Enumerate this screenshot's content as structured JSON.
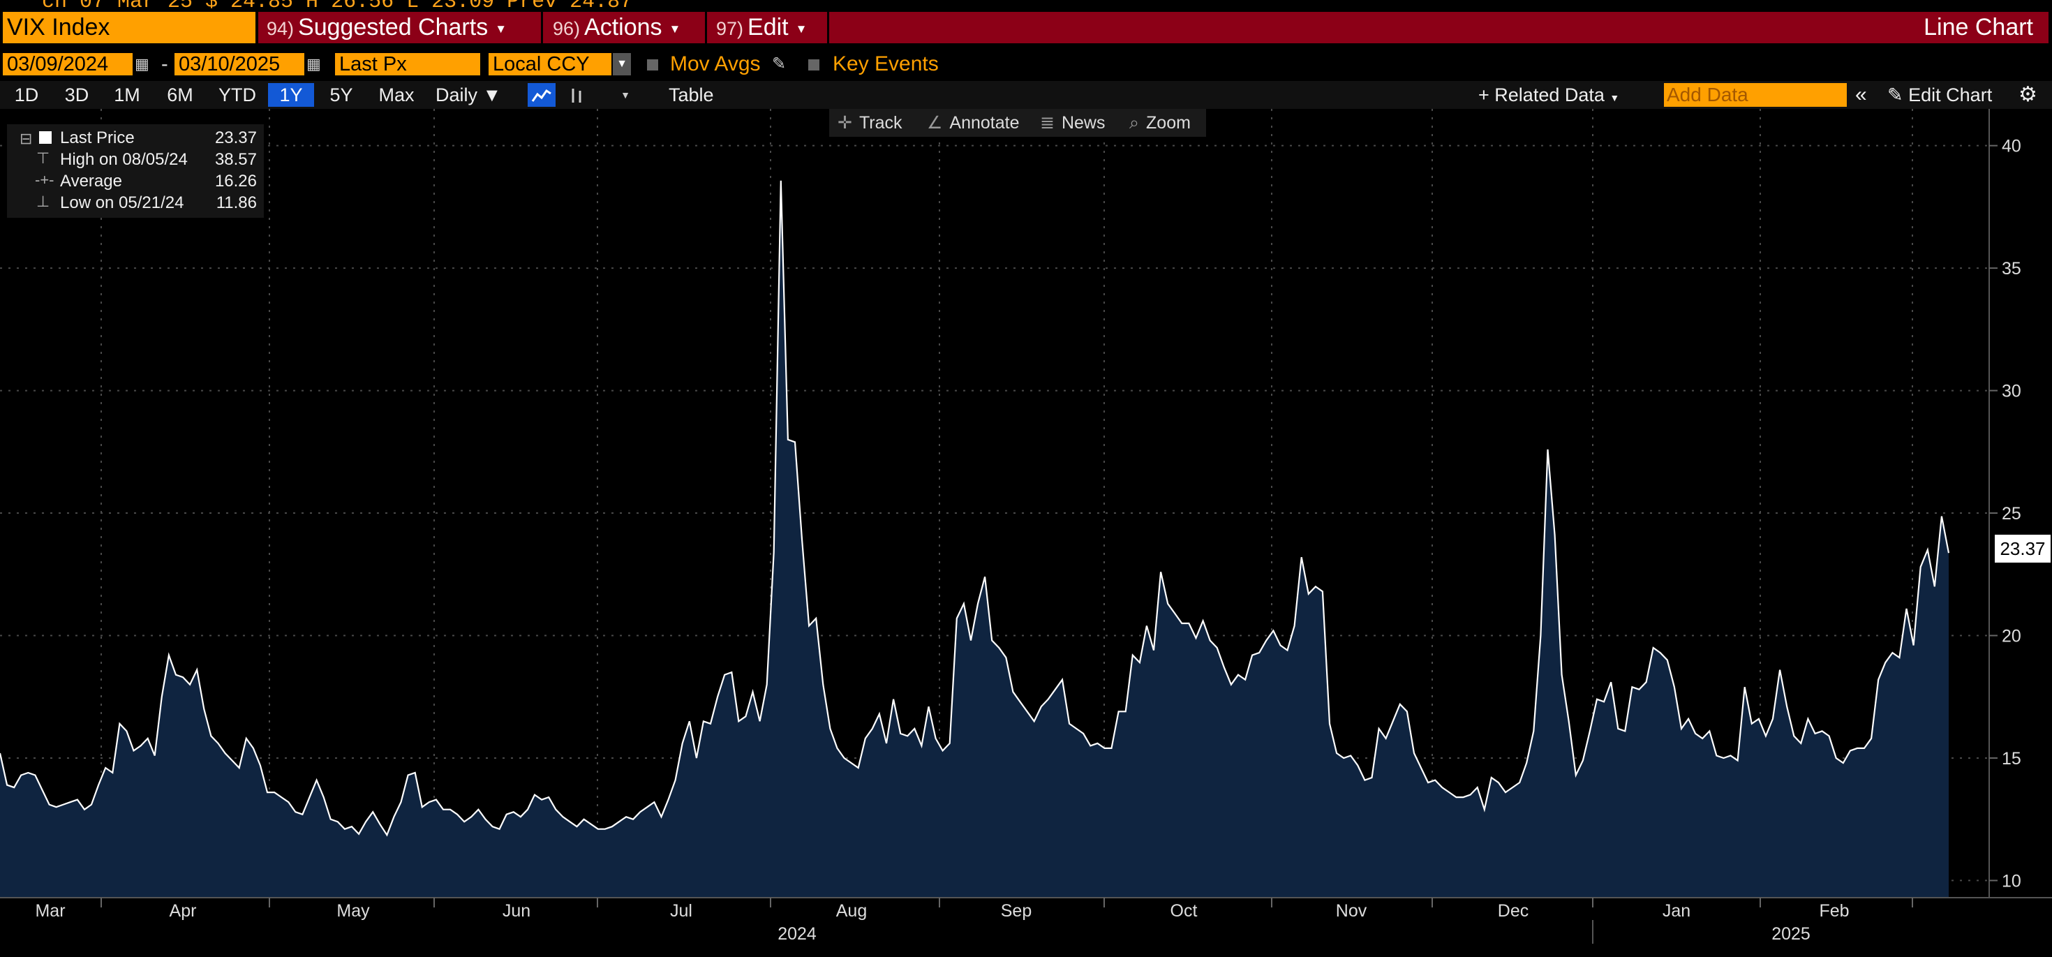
{
  "top_strip": {
    "text": "ch 07 Mar 25    $ 24.85  H 26.56  L 23.09  Prev 24.87"
  },
  "header": {
    "ticker": "VIX Index",
    "menus": [
      {
        "num": "94)",
        "label": "Suggested Charts"
      },
      {
        "num": "96)",
        "label": "Actions"
      },
      {
        "num": "97)",
        "label": "Edit"
      }
    ],
    "chart_type_label": "Line Chart"
  },
  "options": {
    "start_date": "03/09/2024",
    "end_date": "03/10/2025",
    "field": "Last Px",
    "currency": "Local CCY",
    "mov_avgs_label": "Mov Avgs",
    "key_events_label": "Key Events"
  },
  "controls": {
    "ranges": [
      "1D",
      "3D",
      "1M",
      "6M",
      "YTD",
      "1Y",
      "5Y",
      "Max"
    ],
    "selected_range": "1Y",
    "frequency": "Daily",
    "table_label": "Table",
    "related_data_label": "Related Data",
    "add_data_placeholder": "Add Data",
    "edit_chart_label": "Edit Chart"
  },
  "tools": {
    "track": "Track",
    "annotate": "Annotate",
    "news": "News",
    "zoom": "Zoom"
  },
  "legend": {
    "last_price_label": "Last Price",
    "last_price_value": "23.37",
    "high_label": "High on 08/05/24",
    "high_value": "38.57",
    "average_label": "Average",
    "average_value": "16.26",
    "low_label": "Low on 05/21/24",
    "low_value": "11.86"
  },
  "last_price_tag": "23.37",
  "colors": {
    "accent_orange": "#ffa000",
    "header_red": "#8c0017",
    "selected_blue": "#1359d6",
    "area_fill": "#0f2440",
    "line": "#ffffff"
  },
  "chart_data": {
    "type": "area",
    "title": "",
    "xlabel": "",
    "ylabel": "",
    "ylim": [
      9.3,
      41.5
    ],
    "yticks": [
      10,
      15,
      20,
      25,
      30,
      35,
      40
    ],
    "ytick_labels": [
      "10",
      "15",
      "20",
      "25",
      "30",
      "35",
      "40"
    ],
    "x_month_labels": [
      "Mar",
      "Apr",
      "May",
      "Jun",
      "Jul",
      "Aug",
      "Sep",
      "Oct",
      "Nov",
      "Dec",
      "Jan",
      "Feb"
    ],
    "x_year_labels": [
      "2024",
      "2025"
    ],
    "grid": true,
    "series": [
      {
        "values": [
          15.2,
          13.9,
          13.8,
          14.3,
          14.4,
          14.3,
          13.7,
          13.1,
          13.0,
          13.1,
          13.2,
          13.3,
          12.9,
          13.1,
          13.9,
          14.6,
          14.4,
          16.4,
          16.1,
          15.3,
          15.5,
          15.8,
          15.1,
          17.5,
          19.2,
          18.4,
          18.3,
          18.0,
          18.6,
          17.0,
          15.9,
          15.6,
          15.2,
          14.9,
          14.6,
          15.8,
          15.4,
          14.7,
          13.6,
          13.6,
          13.4,
          13.2,
          12.8,
          12.7,
          13.4,
          14.1,
          13.4,
          12.5,
          12.4,
          12.1,
          12.2,
          11.9,
          12.4,
          12.8,
          12.3,
          11.86,
          12.6,
          13.2,
          14.3,
          14.4,
          13.0,
          13.2,
          13.3,
          12.9,
          12.9,
          12.7,
          12.4,
          12.6,
          12.9,
          12.5,
          12.2,
          12.1,
          12.7,
          12.8,
          12.6,
          12.9,
          13.5,
          13.3,
          13.4,
          12.9,
          12.6,
          12.4,
          12.2,
          12.5,
          12.3,
          12.1,
          12.1,
          12.2,
          12.4,
          12.6,
          12.5,
          12.8,
          13.0,
          13.2,
          12.6,
          13.3,
          14.1,
          15.6,
          16.5,
          15.0,
          16.5,
          16.4,
          17.5,
          18.4,
          18.5,
          16.5,
          16.7,
          17.7,
          16.5,
          18.0,
          23.4,
          38.57,
          28.0,
          27.9,
          23.9,
          20.4,
          20.7,
          18.0,
          16.2,
          15.4,
          15.0,
          14.8,
          14.6,
          15.8,
          16.2,
          16.8,
          15.6,
          17.4,
          16.0,
          15.9,
          16.2,
          15.5,
          17.1,
          15.8,
          15.3,
          15.6,
          20.7,
          21.3,
          19.8,
          21.3,
          22.4,
          19.8,
          19.5,
          19.1,
          17.7,
          17.3,
          16.9,
          16.5,
          17.1,
          17.4,
          17.8,
          18.2,
          16.4,
          16.2,
          16.0,
          15.5,
          15.6,
          15.4,
          15.4,
          16.9,
          16.9,
          19.2,
          18.9,
          20.4,
          19.4,
          22.6,
          21.3,
          20.9,
          20.5,
          20.5,
          19.9,
          20.6,
          19.8,
          19.5,
          18.7,
          18.0,
          18.4,
          18.2,
          19.2,
          19.3,
          19.8,
          20.2,
          19.6,
          19.4,
          20.4,
          23.2,
          21.7,
          22.0,
          21.8,
          16.4,
          15.2,
          15.0,
          15.1,
          14.7,
          14.1,
          14.2,
          16.2,
          15.8,
          16.5,
          17.2,
          16.9,
          15.2,
          14.6,
          14.0,
          14.1,
          13.8,
          13.6,
          13.4,
          13.4,
          13.5,
          13.8,
          12.9,
          14.2,
          14.0,
          13.6,
          13.8,
          14.0,
          14.8,
          16.1,
          20.0,
          27.6,
          24.1,
          18.4,
          16.5,
          14.3,
          14.9,
          16.1,
          17.4,
          17.3,
          18.1,
          16.2,
          16.1,
          17.9,
          17.8,
          18.1,
          19.5,
          19.3,
          19.0,
          17.9,
          16.2,
          16.6,
          16.0,
          15.8,
          16.1,
          15.1,
          15.0,
          15.1,
          14.9,
          17.9,
          16.4,
          16.6,
          15.9,
          16.6,
          18.6,
          17.1,
          15.9,
          15.6,
          16.6,
          16.0,
          16.1,
          15.9,
          15.0,
          14.8,
          15.3,
          15.4,
          15.4,
          15.8,
          18.2,
          18.9,
          19.3,
          19.1,
          21.1,
          19.6,
          22.8,
          23.5,
          22.0,
          24.87,
          23.37
        ]
      }
    ]
  }
}
